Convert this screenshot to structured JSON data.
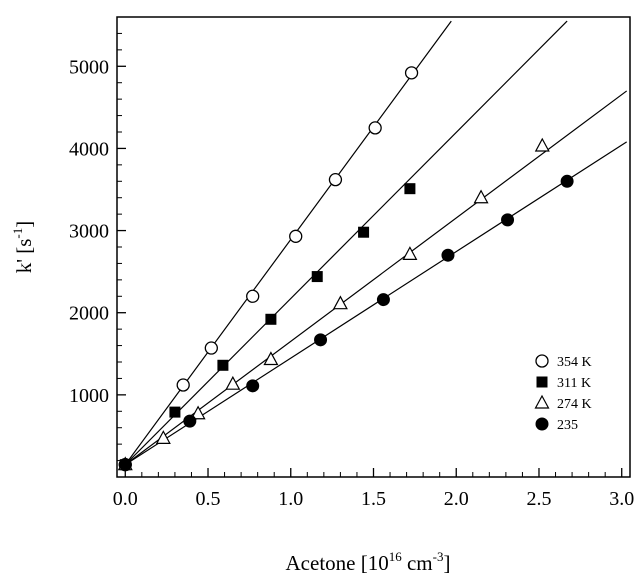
{
  "chart_data": {
    "type": "scatter",
    "xlabel": {
      "main": "Acetone [10",
      "sup": "16",
      "mid": " cm",
      "sup2": "-3",
      "end": "]"
    },
    "ylabel": {
      "main": "k' [s",
      "sup": "-1",
      "end": "]"
    },
    "xlim": [
      -0.05,
      3.05
    ],
    "ylim": [
      0,
      5600
    ],
    "xticks": [
      0.0,
      0.5,
      1.0,
      1.5,
      2.0,
      2.5,
      3.0
    ],
    "xtick_labels": [
      "0.0",
      "0.5",
      "1.0",
      "1.5",
      "2.0",
      "2.5",
      "3.0"
    ],
    "yticks": [
      1000,
      2000,
      3000,
      4000,
      5000
    ],
    "ytick_labels": [
      "1000",
      "2000",
      "3000",
      "4000",
      "5000"
    ],
    "grid": false,
    "legend_position": "bottom-right",
    "series": [
      {
        "name": "354 K",
        "marker": "open-circle",
        "points": [
          [
            0.0,
            150
          ],
          [
            0.35,
            1120
          ],
          [
            0.52,
            1570
          ],
          [
            0.77,
            2200
          ],
          [
            1.03,
            2930
          ],
          [
            1.27,
            3620
          ],
          [
            1.51,
            4250
          ],
          [
            1.73,
            4920
          ]
        ],
        "fit": [
          [
            0.0,
            150
          ],
          [
            1.97,
            5550
          ]
        ]
      },
      {
        "name": "311 K",
        "marker": "filled-square",
        "points": [
          [
            0.0,
            150
          ],
          [
            0.3,
            790
          ],
          [
            0.59,
            1360
          ],
          [
            0.88,
            1920
          ],
          [
            1.16,
            2440
          ],
          [
            1.44,
            2980
          ],
          [
            1.72,
            3510
          ]
        ],
        "fit": [
          [
            0.0,
            150
          ],
          [
            2.67,
            5550
          ]
        ]
      },
      {
        "name": "274 K",
        "marker": "open-triangle",
        "points": [
          [
            0.0,
            150
          ],
          [
            0.23,
            470
          ],
          [
            0.44,
            770
          ],
          [
            0.65,
            1130
          ],
          [
            0.88,
            1430
          ],
          [
            1.3,
            2110
          ],
          [
            1.72,
            2710
          ],
          [
            2.15,
            3400
          ],
          [
            2.52,
            4030
          ]
        ],
        "fit": [
          [
            0.0,
            150
          ],
          [
            3.03,
            4700
          ]
        ]
      },
      {
        "name": "235",
        "marker": "filled-circle",
        "points": [
          [
            0.0,
            150
          ],
          [
            0.39,
            680
          ],
          [
            0.77,
            1110
          ],
          [
            1.18,
            1670
          ],
          [
            1.56,
            2160
          ],
          [
            1.95,
            2700
          ],
          [
            2.31,
            3130
          ],
          [
            2.67,
            3600
          ]
        ],
        "fit": [
          [
            0.0,
            150
          ],
          [
            3.03,
            4080
          ]
        ]
      }
    ]
  }
}
